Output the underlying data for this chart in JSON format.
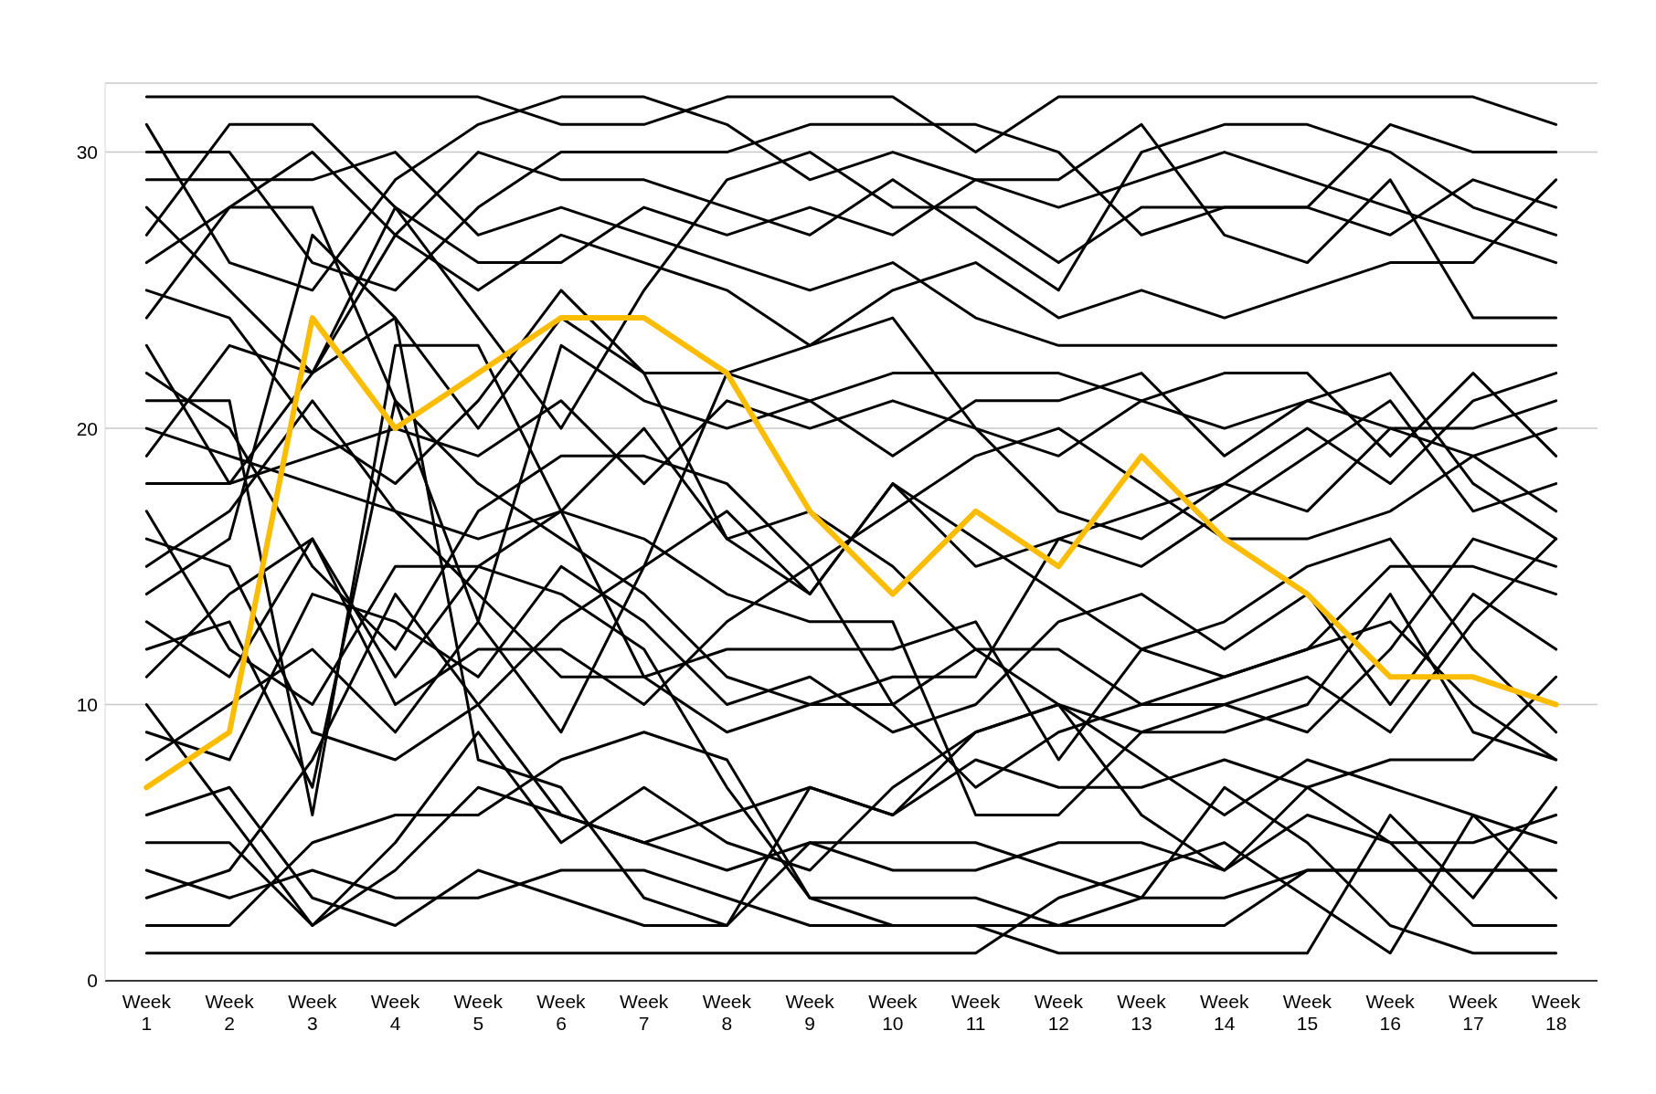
{
  "chart_data": {
    "type": "line",
    "categories": [
      "Week 1",
      "Week 2",
      "Week 3",
      "Week 4",
      "Week 5",
      "Week 6",
      "Week 7",
      "Week 8",
      "Week 9",
      "Week 10",
      "Week 11",
      "Week 12",
      "Week 13",
      "Week 14",
      "Week 15",
      "Week 16",
      "Week 17",
      "Week 18"
    ],
    "ylim": [
      0,
      32.5
    ],
    "yticks": [
      0,
      10,
      20,
      30
    ],
    "grid": "y",
    "legend": false,
    "marker": "none",
    "line_style": "solid",
    "series": [
      {
        "color": "#000000",
        "values": [
          1,
          1,
          1,
          1,
          1,
          1,
          1,
          1,
          1,
          1,
          1,
          3,
          4,
          5,
          3,
          1,
          6,
          3
        ]
      },
      {
        "color": "#000000",
        "values": [
          2,
          2,
          5,
          6,
          6,
          8,
          9,
          8,
          3,
          3,
          3,
          2,
          2,
          2,
          4,
          4,
          4,
          4
        ]
      },
      {
        "color": "#000000",
        "values": [
          3,
          4,
          8,
          14,
          10,
          6,
          5,
          6,
          7,
          6,
          9,
          10,
          8,
          6,
          8,
          7,
          6,
          5
        ]
      },
      {
        "color": "#000000",
        "values": [
          4,
          3,
          4,
          3,
          3,
          4,
          4,
          3,
          2,
          2,
          2,
          1,
          1,
          1,
          1,
          6,
          3,
          7
        ]
      },
      {
        "color": "#000000",
        "values": [
          5,
          5,
          2,
          4,
          7,
          6,
          5,
          4,
          5,
          4,
          4,
          5,
          5,
          4,
          6,
          5,
          2,
          2
        ]
      },
      {
        "color": "#000000",
        "values": [
          6,
          7,
          3,
          2,
          4,
          3,
          2,
          2,
          7,
          6,
          8,
          7,
          7,
          8,
          7,
          5,
          5,
          6
        ]
      },
      {
        "color": "#000000",
        "values": [
          8,
          10,
          12,
          9,
          13,
          23,
          21,
          20,
          21,
          22,
          22,
          22,
          21,
          22,
          22,
          19,
          22,
          19
        ]
      },
      {
        "color": "#000000",
        "values": [
          9,
          8,
          14,
          13,
          11,
          15,
          13,
          10,
          11,
          9,
          10,
          13,
          14,
          12,
          14,
          10,
          14,
          12
        ]
      },
      {
        "color": "#000000",
        "values": [
          10,
          6,
          2,
          5,
          9,
          5,
          7,
          5,
          4,
          7,
          9,
          10,
          6,
          4,
          7,
          8,
          8,
          11
        ]
      },
      {
        "color": "#000000",
        "values": [
          11,
          14,
          16,
          10,
          12,
          12,
          10,
          13,
          15,
          10,
          12,
          12,
          10,
          10,
          11,
          9,
          13,
          16
        ]
      },
      {
        "color": "#000000",
        "values": [
          12,
          13,
          7,
          21,
          18,
          16,
          14,
          11,
          10,
          11,
          11,
          16,
          15,
          17,
          19,
          21,
          17,
          18
        ]
      },
      {
        "color": "#000000",
        "values": [
          13,
          11,
          16,
          11,
          15,
          17,
          16,
          14,
          13,
          13,
          6,
          6,
          9,
          9,
          10,
          14,
          9,
          8
        ]
      },
      {
        "color": "#000000",
        "values": [
          14,
          16,
          27,
          24,
          8,
          7,
          3,
          2,
          5,
          5,
          5,
          4,
          3,
          3,
          4,
          4,
          4,
          4
        ]
      },
      {
        "color": "#000000",
        "values": [
          15,
          17,
          21,
          17,
          16,
          17,
          11,
          9,
          10,
          10,
          7,
          9,
          10,
          11,
          12,
          15,
          15,
          14
        ]
      },
      {
        "color": "#000000",
        "values": [
          16,
          15,
          9,
          8,
          10,
          13,
          15,
          17,
          14,
          18,
          16,
          14,
          12,
          13,
          15,
          16,
          12,
          9
        ]
      },
      {
        "color": "#000000",
        "values": [
          17,
          12,
          10,
          15,
          15,
          14,
          12,
          7,
          3,
          2,
          2,
          2,
          3,
          7,
          5,
          2,
          1,
          1
        ]
      },
      {
        "color": "#000000",
        "values": [
          18,
          18,
          22,
          28,
          24,
          20,
          25,
          29,
          30,
          28,
          28,
          26,
          28,
          28,
          28,
          27,
          29,
          28
        ]
      },
      {
        "color": "#000000",
        "values": [
          19,
          23,
          22,
          24,
          20,
          24,
          22,
          16,
          14,
          18,
          15,
          16,
          17,
          18,
          20,
          18,
          21,
          22
        ]
      },
      {
        "color": "#000000",
        "values": [
          20,
          19,
          18,
          17,
          14,
          11,
          11,
          12,
          12,
          12,
          13,
          8,
          12,
          11,
          12,
          13,
          10,
          8
        ]
      },
      {
        "color": "#000000",
        "values": [
          21,
          21,
          6,
          23,
          23,
          17,
          20,
          16,
          17,
          15,
          12,
          10,
          9,
          10,
          9,
          12,
          16,
          15
        ]
      },
      {
        "color": "#000000",
        "values": [
          22,
          20,
          15,
          12,
          17,
          19,
          19,
          18,
          15,
          17,
          19,
          20,
          18,
          16,
          16,
          17,
          19,
          17
        ]
      },
      {
        "color": "#000000",
        "values": [
          23,
          18,
          19,
          20,
          19,
          21,
          18,
          21,
          20,
          21,
          20,
          17,
          16,
          18,
          17,
          20,
          20,
          21
        ]
      },
      {
        "color": "#000000",
        "values": [
          24,
          28,
          28,
          21,
          13,
          9,
          15,
          22,
          21,
          19,
          21,
          21,
          22,
          19,
          21,
          20,
          19,
          20
        ]
      },
      {
        "color": "#000000",
        "values": [
          25,
          24,
          20,
          18,
          21,
          25,
          22,
          22,
          23,
          24,
          20,
          19,
          21,
          20,
          21,
          22,
          18,
          16
        ]
      },
      {
        "color": "#000000",
        "values": [
          26,
          28,
          30,
          27,
          25,
          27,
          26,
          25,
          23,
          25,
          26,
          24,
          25,
          24,
          25,
          26,
          26,
          29
        ]
      },
      {
        "color": "#000000",
        "values": [
          27,
          31,
          31,
          28,
          26,
          26,
          28,
          27,
          28,
          27,
          29,
          28,
          29,
          30,
          29,
          28,
          27,
          26
        ]
      },
      {
        "color": "#000000",
        "values": [
          28,
          25,
          22,
          27,
          30,
          29,
          29,
          28,
          27,
          29,
          27,
          25,
          30,
          31,
          31,
          30,
          28,
          27
        ]
      },
      {
        "color": "#000000",
        "values": [
          29,
          29,
          29,
          30,
          27,
          28,
          27,
          26,
          25,
          26,
          24,
          23,
          23,
          23,
          23,
          23,
          23,
          23
        ]
      },
      {
        "color": "#000000",
        "values": [
          30,
          30,
          26,
          25,
          28,
          30,
          30,
          30,
          31,
          31,
          31,
          30,
          27,
          28,
          28,
          31,
          30,
          30
        ]
      },
      {
        "color": "#000000",
        "values": [
          31,
          26,
          25,
          29,
          31,
          32,
          32,
          31,
          29,
          30,
          29,
          29,
          31,
          27,
          26,
          29,
          24,
          24
        ]
      },
      {
        "color": "#000000",
        "values": [
          32,
          32,
          32,
          32,
          32,
          31,
          31,
          32,
          32,
          32,
          30,
          32,
          32,
          32,
          32,
          32,
          32,
          31
        ]
      },
      {
        "color": "#fcbc00",
        "values": [
          7,
          9,
          24,
          20,
          22,
          24,
          24,
          22,
          17,
          14,
          17,
          15,
          19,
          16,
          14,
          11,
          11,
          10
        ]
      }
    ]
  }
}
